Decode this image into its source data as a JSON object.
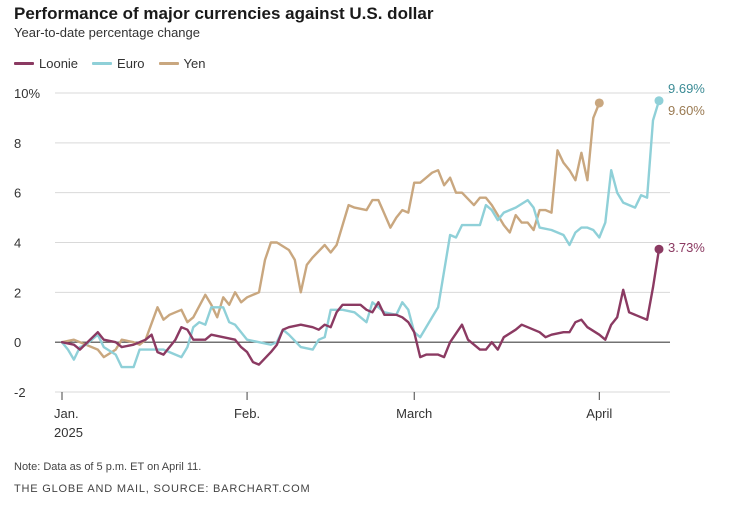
{
  "chart_data": {
    "type": "line",
    "title": "Performance of major currencies against U.S. dollar",
    "subtitle": "Year-to-date percentage change",
    "ylabel": "",
    "xlabel": "",
    "ylim": [
      -2,
      10
    ],
    "yticks": [
      {
        "value": 10,
        "label": "10%"
      },
      {
        "value": 8,
        "label": "8"
      },
      {
        "value": 6,
        "label": "6"
      },
      {
        "value": 4,
        "label": "4"
      },
      {
        "value": 2,
        "label": "2"
      },
      {
        "value": 0,
        "label": "0"
      },
      {
        "value": -2,
        "label": "-2"
      }
    ],
    "xrange": [
      0,
      100
    ],
    "xticks": [
      {
        "value": 0,
        "label": "Jan.",
        "label2": "2025"
      },
      {
        "value": 31,
        "label": "Feb.",
        "label2": ""
      },
      {
        "value": 59,
        "label": "March",
        "label2": ""
      },
      {
        "value": 90,
        "label": "April",
        "label2": ""
      }
    ],
    "grid": true,
    "legend_position": "top-left",
    "series": [
      {
        "name": "Loonie",
        "color": "#8b3a62",
        "end_label": "3.73%",
        "points": [
          [
            0,
            0
          ],
          [
            2,
            -0.1
          ],
          [
            3,
            -0.3
          ],
          [
            6,
            0.4
          ],
          [
            7,
            0.1
          ],
          [
            9,
            0
          ],
          [
            10,
            -0.2
          ],
          [
            12,
            -0.1
          ],
          [
            14,
            0.1
          ],
          [
            15,
            0.3
          ],
          [
            16,
            -0.4
          ],
          [
            17,
            -0.5
          ],
          [
            19,
            0.1
          ],
          [
            20,
            0.6
          ],
          [
            21,
            0.5
          ],
          [
            22,
            0.1
          ],
          [
            24,
            0.1
          ],
          [
            25,
            0.3
          ],
          [
            27,
            0.2
          ],
          [
            29,
            0.1
          ],
          [
            30,
            -0.2
          ],
          [
            31,
            -0.4
          ],
          [
            32,
            -0.8
          ],
          [
            33,
            -0.9
          ],
          [
            35,
            -0.4
          ],
          [
            36,
            -0.1
          ],
          [
            37,
            0.5
          ],
          [
            38,
            0.6
          ],
          [
            40,
            0.7
          ],
          [
            42,
            0.6
          ],
          [
            43,
            0.5
          ],
          [
            44,
            0.7
          ],
          [
            45,
            0.6
          ],
          [
            46,
            1.2
          ],
          [
            47,
            1.5
          ],
          [
            50,
            1.5
          ],
          [
            51,
            1.3
          ],
          [
            52,
            1.2
          ],
          [
            53,
            1.6
          ],
          [
            54,
            1.1
          ],
          [
            56,
            1.1
          ],
          [
            57,
            1.0
          ],
          [
            58,
            0.8
          ],
          [
            59,
            0.4
          ],
          [
            60,
            -0.6
          ],
          [
            61,
            -0.5
          ],
          [
            63,
            -0.5
          ],
          [
            64,
            -0.6
          ],
          [
            65,
            0
          ],
          [
            67,
            0.7
          ],
          [
            68,
            0.1
          ],
          [
            70,
            -0.3
          ],
          [
            71,
            -0.3
          ],
          [
            72,
            0
          ],
          [
            73,
            -0.3
          ],
          [
            74,
            0.2
          ],
          [
            76,
            0.5
          ],
          [
            77,
            0.7
          ],
          [
            78,
            0.6
          ],
          [
            80,
            0.4
          ],
          [
            81,
            0.2
          ],
          [
            82,
            0.3
          ],
          [
            84,
            0.4
          ],
          [
            85,
            0.4
          ],
          [
            86,
            0.8
          ],
          [
            87,
            0.9
          ],
          [
            88,
            0.6
          ],
          [
            90,
            0.3
          ],
          [
            91,
            0.1
          ],
          [
            92,
            0.7
          ],
          [
            93,
            1.0
          ],
          [
            94,
            2.1
          ],
          [
            95,
            1.2
          ],
          [
            97,
            1.0
          ],
          [
            98,
            0.9
          ],
          [
            99,
            2.2
          ],
          [
            100,
            3.73
          ]
        ]
      },
      {
        "name": "Euro",
        "color": "#8fd0d8",
        "end_label": "9.69%",
        "points": [
          [
            0,
            0
          ],
          [
            1,
            -0.3
          ],
          [
            2,
            -0.7
          ],
          [
            3,
            -0.2
          ],
          [
            4,
            -0.1
          ],
          [
            6,
            0.3
          ],
          [
            7,
            -0.2
          ],
          [
            9,
            -0.5
          ],
          [
            10,
            -1.0
          ],
          [
            12,
            -1.0
          ],
          [
            13,
            -0.3
          ],
          [
            14,
            -0.3
          ],
          [
            15,
            -0.3
          ],
          [
            16,
            -0.3
          ],
          [
            17,
            -0.3
          ],
          [
            19,
            -0.5
          ],
          [
            20,
            -0.6
          ],
          [
            21,
            -0.2
          ],
          [
            22,
            0.6
          ],
          [
            23,
            0.8
          ],
          [
            24,
            0.7
          ],
          [
            25,
            1.4
          ],
          [
            27,
            1.4
          ],
          [
            28,
            0.8
          ],
          [
            29,
            0.7
          ],
          [
            31,
            0.1
          ],
          [
            33,
            0
          ],
          [
            35,
            -0.1
          ],
          [
            36,
            0
          ],
          [
            37,
            0.5
          ],
          [
            38,
            0.3
          ],
          [
            40,
            -0.2
          ],
          [
            42,
            -0.3
          ],
          [
            43,
            0.1
          ],
          [
            44,
            0.2
          ],
          [
            45,
            1.3
          ],
          [
            47,
            1.3
          ],
          [
            49,
            1.2
          ],
          [
            51,
            0.8
          ],
          [
            52,
            1.6
          ],
          [
            54,
            1.2
          ],
          [
            56,
            1.1
          ],
          [
            57,
            1.6
          ],
          [
            58,
            1.3
          ],
          [
            59,
            0.4
          ],
          [
            60,
            0.2
          ],
          [
            62,
            1.0
          ],
          [
            63,
            1.4
          ],
          [
            65,
            4.3
          ],
          [
            66,
            4.2
          ],
          [
            67,
            4.7
          ],
          [
            69,
            4.7
          ],
          [
            70,
            4.7
          ],
          [
            71,
            5.5
          ],
          [
            72,
            5.3
          ],
          [
            73,
            4.9
          ],
          [
            74,
            5.2
          ],
          [
            76,
            5.4
          ],
          [
            78,
            5.7
          ],
          [
            79,
            5.4
          ],
          [
            80,
            4.6
          ],
          [
            82,
            4.5
          ],
          [
            84,
            4.3
          ],
          [
            85,
            3.9
          ],
          [
            86,
            4.4
          ],
          [
            87,
            4.6
          ],
          [
            88,
            4.6
          ],
          [
            89,
            4.5
          ],
          [
            90,
            4.2
          ],
          [
            91,
            4.8
          ],
          [
            92,
            6.9
          ],
          [
            93,
            6.0
          ],
          [
            94,
            5.6
          ],
          [
            95,
            5.5
          ],
          [
            96,
            5.4
          ],
          [
            97,
            5.9
          ],
          [
            98,
            5.8
          ],
          [
            99,
            8.9
          ],
          [
            100,
            9.69
          ]
        ]
      },
      {
        "name": "Yen",
        "color": "#c9a77f",
        "end_label": "9.60%",
        "points": [
          [
            0,
            0
          ],
          [
            2,
            0.1
          ],
          [
            3,
            0
          ],
          [
            4,
            -0.1
          ],
          [
            6,
            -0.3
          ],
          [
            7,
            -0.6
          ],
          [
            9,
            -0.3
          ],
          [
            10,
            0.1
          ],
          [
            12,
            0
          ],
          [
            13,
            -0.1
          ],
          [
            14,
            0.1
          ],
          [
            16,
            1.4
          ],
          [
            17,
            0.9
          ],
          [
            18,
            1.1
          ],
          [
            19,
            1.2
          ],
          [
            20,
            1.3
          ],
          [
            21,
            0.8
          ],
          [
            22,
            1.0
          ],
          [
            24,
            1.9
          ],
          [
            25,
            1.5
          ],
          [
            26,
            1.0
          ],
          [
            27,
            1.8
          ],
          [
            28,
            1.5
          ],
          [
            29,
            2.0
          ],
          [
            30,
            1.6
          ],
          [
            31,
            1.8
          ],
          [
            33,
            2.0
          ],
          [
            34,
            3.3
          ],
          [
            35,
            4.0
          ],
          [
            36,
            4.0
          ],
          [
            38,
            3.7
          ],
          [
            39,
            3.3
          ],
          [
            40,
            2.0
          ],
          [
            41,
            3.1
          ],
          [
            42,
            3.4
          ],
          [
            44,
            3.9
          ],
          [
            45,
            3.6
          ],
          [
            46,
            3.9
          ],
          [
            48,
            5.5
          ],
          [
            49,
            5.4
          ],
          [
            51,
            5.3
          ],
          [
            52,
            5.7
          ],
          [
            53,
            5.7
          ],
          [
            55,
            4.6
          ],
          [
            56,
            5.0
          ],
          [
            57,
            5.3
          ],
          [
            58,
            5.2
          ],
          [
            59,
            6.4
          ],
          [
            60,
            6.4
          ],
          [
            61,
            6.6
          ],
          [
            62,
            6.8
          ],
          [
            63,
            6.9
          ],
          [
            64,
            6.3
          ],
          [
            65,
            6.6
          ],
          [
            66,
            6.0
          ],
          [
            67,
            6.0
          ],
          [
            69,
            5.5
          ],
          [
            70,
            5.8
          ],
          [
            71,
            5.8
          ],
          [
            72,
            5.5
          ],
          [
            74,
            4.7
          ],
          [
            75,
            4.4
          ],
          [
            76,
            5.1
          ],
          [
            77,
            4.8
          ],
          [
            78,
            4.8
          ],
          [
            79,
            4.5
          ],
          [
            80,
            5.3
          ],
          [
            81,
            5.3
          ],
          [
            82,
            5.2
          ],
          [
            83,
            7.7
          ],
          [
            84,
            7.2
          ],
          [
            85,
            6.9
          ],
          [
            86,
            6.5
          ],
          [
            87,
            7.6
          ],
          [
            88,
            6.5
          ],
          [
            89,
            9.0
          ],
          [
            90,
            9.6
          ]
        ]
      }
    ]
  },
  "note": "Note: Data as of 5 p.m. ET on April 11.",
  "credit": "THE GLOBE AND MAIL, SOURCE: BARCHART.COM"
}
